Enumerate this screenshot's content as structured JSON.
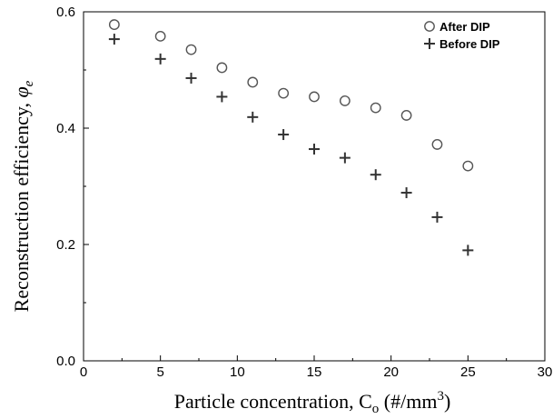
{
  "chart_data": {
    "type": "scatter",
    "title": "",
    "xlabel": {
      "main": "Particle concentration, C",
      "sub": "o",
      "unit_prefix": " (#/mm",
      "unit_sup": "3",
      "unit_suffix": ")"
    },
    "ylabel": {
      "main": "Reconstruction efficiency, ",
      "symbol": "φ",
      "sub": "e"
    },
    "xlim": [
      0,
      30
    ],
    "ylim": [
      0,
      0.6
    ],
    "xticks": [
      "0",
      "5",
      "10",
      "15",
      "20",
      "25",
      "30"
    ],
    "yticks": [
      "0.0",
      "0.2",
      "0.4",
      "0.6"
    ],
    "grid": false,
    "legend_position": "top-right",
    "series": [
      {
        "name": "After DIP",
        "marker": "open-circle",
        "color": "#555555",
        "x": [
          2,
          5,
          7,
          9,
          11,
          13,
          15,
          17,
          19,
          21,
          23,
          25
        ],
        "y": [
          0.578,
          0.558,
          0.535,
          0.504,
          0.479,
          0.46,
          0.454,
          0.447,
          0.435,
          0.422,
          0.372,
          0.335
        ]
      },
      {
        "name": "Before DIP",
        "marker": "plus",
        "color": "#333333",
        "x": [
          2,
          5,
          7,
          9,
          11,
          13,
          15,
          17,
          19,
          21,
          23,
          25
        ],
        "y": [
          0.553,
          0.519,
          0.486,
          0.454,
          0.419,
          0.389,
          0.364,
          0.349,
          0.32,
          0.289,
          0.247,
          0.19
        ]
      }
    ]
  }
}
